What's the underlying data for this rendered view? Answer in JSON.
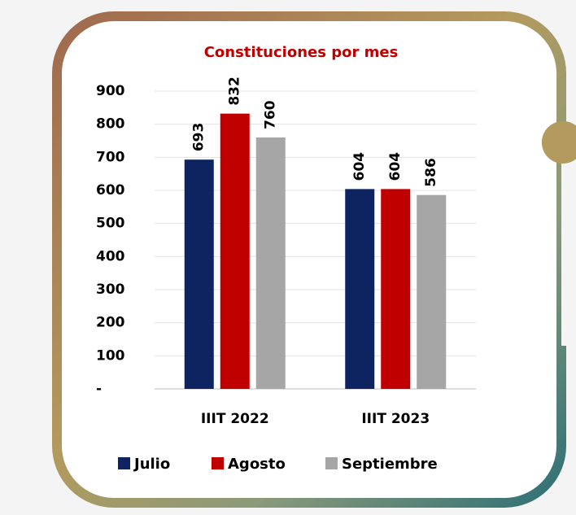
{
  "chart_data": {
    "type": "bar",
    "title": "Constituciones  por mes",
    "categories": [
      "IIIT 2022",
      "IIIT 2023"
    ],
    "series": [
      {
        "name": "Julio",
        "color": "#0d2461",
        "values": [
          693,
          604
        ]
      },
      {
        "name": "Agosto",
        "color": "#c00000",
        "values": [
          832,
          604
        ]
      },
      {
        "name": "Septiembre",
        "color": "#a6a6a6",
        "values": [
          760,
          586
        ]
      }
    ],
    "ylim": [
      0,
      900
    ],
    "yticks": [
      {
        "value": 0,
        "label": "-"
      },
      100,
      200,
      300,
      400,
      500,
      600,
      700,
      800,
      900
    ],
    "grid": true,
    "legend": "bottom"
  }
}
